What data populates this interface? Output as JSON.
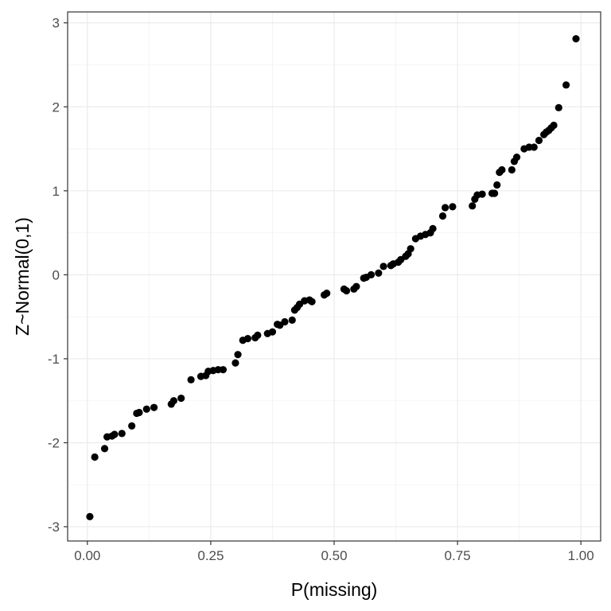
{
  "chart_data": {
    "type": "scatter",
    "title": "",
    "xlabel": "P(missing)",
    "ylabel": "Z~Normal(0,1)",
    "xlim": [
      -0.04,
      1.04
    ],
    "ylim": [
      -3.17,
      3.13
    ],
    "x_ticks": [
      0.0,
      0.25,
      0.5,
      0.75,
      1.0
    ],
    "x_tick_labels": [
      "0.00",
      "0.25",
      "0.50",
      "0.75",
      "1.00"
    ],
    "y_ticks": [
      -3,
      -2,
      -1,
      0,
      1,
      2,
      3
    ],
    "y_tick_labels": [
      "-3",
      "-2",
      "-1",
      "0",
      "1",
      "2",
      "3"
    ],
    "grid": true,
    "legend": "none",
    "point_color": "#000000",
    "points": [
      [
        0.005,
        -2.88
      ],
      [
        0.015,
        -2.17
      ],
      [
        0.035,
        -2.07
      ],
      [
        0.04,
        -1.93
      ],
      [
        0.05,
        -1.92
      ],
      [
        0.055,
        -1.9
      ],
      [
        0.07,
        -1.89
      ],
      [
        0.09,
        -1.8
      ],
      [
        0.1,
        -1.65
      ],
      [
        0.105,
        -1.64
      ],
      [
        0.12,
        -1.6
      ],
      [
        0.135,
        -1.58
      ],
      [
        0.17,
        -1.54
      ],
      [
        0.175,
        -1.5
      ],
      [
        0.19,
        -1.47
      ],
      [
        0.21,
        -1.25
      ],
      [
        0.23,
        -1.21
      ],
      [
        0.24,
        -1.2
      ],
      [
        0.245,
        -1.15
      ],
      [
        0.255,
        -1.14
      ],
      [
        0.265,
        -1.13
      ],
      [
        0.275,
        -1.13
      ],
      [
        0.3,
        -1.05
      ],
      [
        0.305,
        -0.95
      ],
      [
        0.315,
        -0.78
      ],
      [
        0.325,
        -0.76
      ],
      [
        0.34,
        -0.75
      ],
      [
        0.345,
        -0.72
      ],
      [
        0.365,
        -0.7
      ],
      [
        0.375,
        -0.68
      ],
      [
        0.385,
        -0.59
      ],
      [
        0.39,
        -0.6
      ],
      [
        0.4,
        -0.56
      ],
      [
        0.415,
        -0.54
      ],
      [
        0.42,
        -0.42
      ],
      [
        0.425,
        -0.39
      ],
      [
        0.43,
        -0.35
      ],
      [
        0.44,
        -0.31
      ],
      [
        0.45,
        -0.3
      ],
      [
        0.455,
        -0.32
      ],
      [
        0.48,
        -0.24
      ],
      [
        0.485,
        -0.22
      ],
      [
        0.52,
        -0.17
      ],
      [
        0.525,
        -0.19
      ],
      [
        0.54,
        -0.17
      ],
      [
        0.545,
        -0.14
      ],
      [
        0.56,
        -0.04
      ],
      [
        0.565,
        -0.03
      ],
      [
        0.575,
        0.0
      ],
      [
        0.59,
        0.02
      ],
      [
        0.6,
        0.1
      ],
      [
        0.615,
        0.11
      ],
      [
        0.62,
        0.13
      ],
      [
        0.63,
        0.15
      ],
      [
        0.635,
        0.18
      ],
      [
        0.645,
        0.22
      ],
      [
        0.65,
        0.25
      ],
      [
        0.655,
        0.31
      ],
      [
        0.665,
        0.43
      ],
      [
        0.675,
        0.46
      ],
      [
        0.685,
        0.48
      ],
      [
        0.695,
        0.5
      ],
      [
        0.7,
        0.55
      ],
      [
        0.72,
        0.7
      ],
      [
        0.725,
        0.8
      ],
      [
        0.74,
        0.81
      ],
      [
        0.78,
        0.82
      ],
      [
        0.785,
        0.9
      ],
      [
        0.79,
        0.95
      ],
      [
        0.8,
        0.96
      ],
      [
        0.82,
        0.97
      ],
      [
        0.825,
        0.97
      ],
      [
        0.83,
        1.07
      ],
      [
        0.835,
        1.22
      ],
      [
        0.84,
        1.25
      ],
      [
        0.86,
        1.25
      ],
      [
        0.865,
        1.35
      ],
      [
        0.87,
        1.4
      ],
      [
        0.885,
        1.5
      ],
      [
        0.895,
        1.52
      ],
      [
        0.905,
        1.52
      ],
      [
        0.915,
        1.6
      ],
      [
        0.925,
        1.67
      ],
      [
        0.93,
        1.7
      ],
      [
        0.935,
        1.72
      ],
      [
        0.94,
        1.75
      ],
      [
        0.945,
        1.78
      ],
      [
        0.955,
        1.99
      ],
      [
        0.97,
        2.26
      ],
      [
        0.99,
        2.81
      ]
    ]
  }
}
